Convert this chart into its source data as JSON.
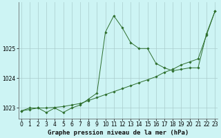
{
  "title": "Graphe pression niveau de la mer (hPa)",
  "background_color": "#cdf4f4",
  "grid_color": "#aacccc",
  "line_color": "#2d6e2d",
  "marker_color": "#2d6e2d",
  "xlim": [
    -0.3,
    23.3
  ],
  "ylim": [
    1022.65,
    1026.55
  ],
  "yticks": [
    1023,
    1024,
    1025
  ],
  "xticks": [
    0,
    1,
    2,
    3,
    4,
    5,
    6,
    7,
    8,
    9,
    10,
    11,
    12,
    13,
    14,
    15,
    16,
    17,
    18,
    19,
    20,
    21,
    22,
    23
  ],
  "series1_x": [
    0,
    1,
    2,
    3,
    4,
    5,
    6,
    7,
    8,
    9,
    10,
    11,
    12,
    13,
    14,
    15,
    16,
    17,
    18,
    19,
    20,
    21,
    22,
    23
  ],
  "series1_y": [
    1022.9,
    1023.0,
    1023.0,
    1022.85,
    1023.0,
    1022.85,
    1023.0,
    1023.1,
    1023.3,
    1023.5,
    1025.55,
    1026.1,
    1025.7,
    1025.2,
    1025.0,
    1025.0,
    1024.5,
    1024.35,
    1024.25,
    1024.3,
    1024.35,
    1024.35,
    1025.5,
    1026.25
  ],
  "series2_x": [
    0,
    1,
    2,
    3,
    4,
    5,
    6,
    7,
    8,
    9,
    10,
    11,
    12,
    13,
    14,
    15,
    16,
    17,
    18,
    19,
    20,
    21,
    22,
    23
  ],
  "series2_y": [
    1022.9,
    1022.95,
    1023.0,
    1023.0,
    1023.02,
    1023.05,
    1023.1,
    1023.15,
    1023.25,
    1023.35,
    1023.45,
    1023.55,
    1023.65,
    1023.75,
    1023.85,
    1023.95,
    1024.05,
    1024.2,
    1024.3,
    1024.45,
    1024.55,
    1024.65,
    1025.45,
    1026.25
  ],
  "tick_fontsize": 5.5,
  "title_fontsize": 6.5
}
